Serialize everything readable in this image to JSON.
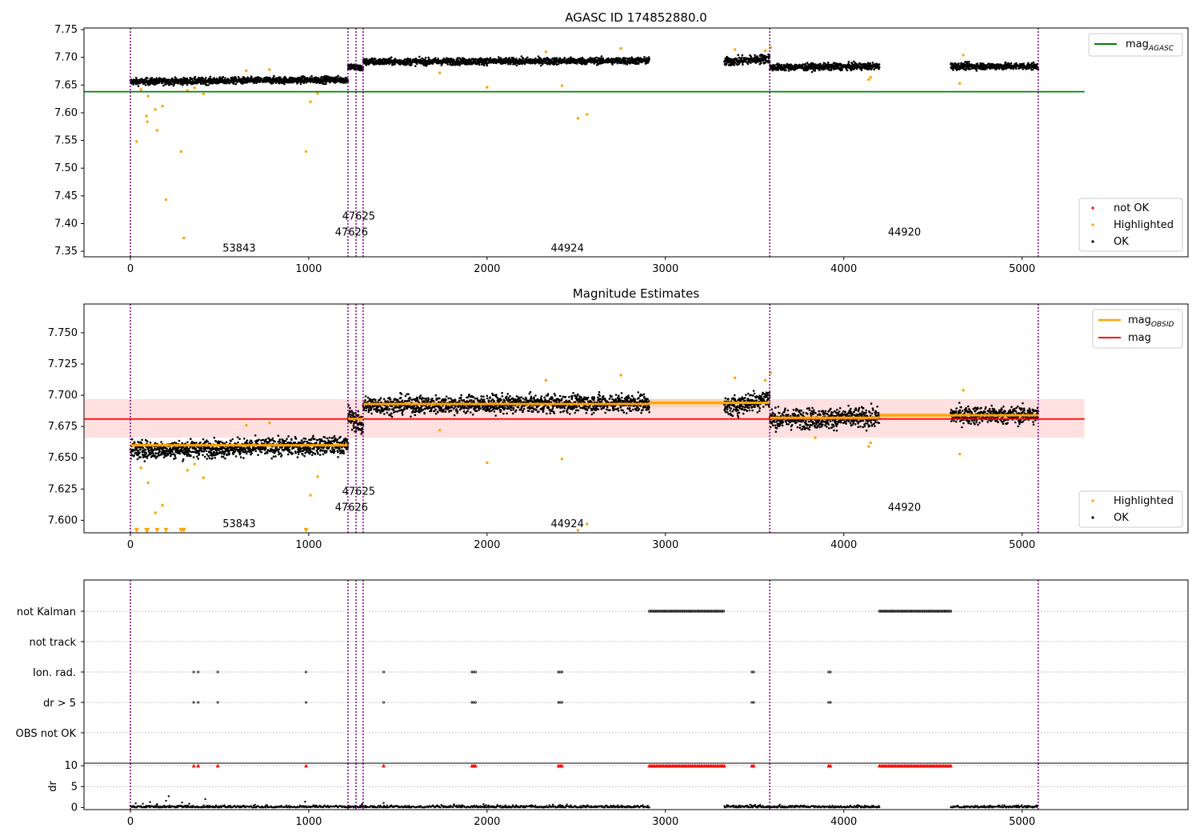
{
  "figure": {
    "colors": {
      "ok": "#000000",
      "highlighted": "#ffa500",
      "not_ok": "#ff0000",
      "mag_agasc": "#008000",
      "mag": "#ff0000",
      "mag_obsid": "#ffa500",
      "obsid_line": "#800080"
    }
  },
  "chart_data": [
    {
      "type": "scatter",
      "title": "AGASC ID 174852880.0",
      "xlabel": "",
      "ylabel": "",
      "xlim": [
        -260,
        5930
      ],
      "ylim": [
        7.34,
        7.753
      ],
      "xticks": [
        0,
        1000,
        2000,
        3000,
        4000,
        5000
      ],
      "yticks": [
        7.35,
        7.4,
        7.45,
        7.5,
        7.55,
        7.6,
        7.65,
        7.7,
        7.75
      ],
      "ytick_labels": [
        "7.35",
        "7.40",
        "7.45",
        "7.50",
        "7.55",
        "7.60",
        "7.65",
        "7.70",
        "7.75"
      ],
      "obsid_lines": [
        0,
        1220,
        1265,
        1305,
        3585,
        5090
      ],
      "obsid_labels": [
        {
          "text": "53843",
          "x": 610,
          "y": 7.355
        },
        {
          "text": "47625",
          "x": 1280,
          "y": 7.413
        },
        {
          "text": "47626",
          "x": 1240,
          "y": 7.384
        },
        {
          "text": "44924",
          "x": 2450,
          "y": 7.355
        },
        {
          "text": "44920",
          "x": 4340,
          "y": 7.384
        }
      ],
      "horizontal_lines": [
        {
          "name": "mag_AGASC",
          "y": 7.638,
          "x": [
            -260,
            5350
          ],
          "color": "#008000"
        }
      ],
      "ok_segments": [
        {
          "x": [
            0,
            1220
          ],
          "start": 7.656,
          "end": 7.66,
          "spread": 0.006
        },
        {
          "x": [
            1220,
            1305
          ],
          "start": 7.684,
          "end": 7.68,
          "spread": 0.006
        },
        {
          "x": [
            1305,
            2910
          ],
          "start": 7.692,
          "end": 7.694,
          "spread": 0.006
        },
        {
          "x": [
            3330,
            3585
          ],
          "start": 7.692,
          "end": 7.698,
          "spread": 0.008
        },
        {
          "x": [
            3585,
            4200
          ],
          "start": 7.682,
          "end": 7.684,
          "spread": 0.006
        },
        {
          "x": [
            4600,
            5090
          ],
          "start": 7.684,
          "end": 7.684,
          "spread": 0.006
        }
      ],
      "highlighted_points": [
        [
          35,
          7.548
        ],
        [
          60,
          7.642
        ],
        [
          90,
          7.594
        ],
        [
          95,
          7.584
        ],
        [
          100,
          7.63
        ],
        [
          140,
          7.606
        ],
        [
          150,
          7.568
        ],
        [
          180,
          7.612
        ],
        [
          200,
          7.443
        ],
        [
          285,
          7.53
        ],
        [
          300,
          7.374
        ],
        [
          320,
          7.64
        ],
        [
          360,
          7.645
        ],
        [
          410,
          7.634
        ],
        [
          650,
          7.676
        ],
        [
          780,
          7.678
        ],
        [
          985,
          7.53
        ],
        [
          1010,
          7.62
        ],
        [
          1050,
          7.635
        ],
        [
          1735,
          7.672
        ],
        [
          2000,
          7.646
        ],
        [
          2330,
          7.71
        ],
        [
          2420,
          7.649
        ],
        [
          2510,
          7.59
        ],
        [
          2560,
          7.597
        ],
        [
          2750,
          7.716
        ],
        [
          3390,
          7.714
        ],
        [
          3560,
          7.712
        ],
        [
          3590,
          7.718
        ],
        [
          4140,
          7.66
        ],
        [
          4150,
          7.664
        ],
        [
          4650,
          7.653
        ],
        [
          4670,
          7.704
        ]
      ],
      "legend_top": {
        "location": "upper right",
        "entries": [
          {
            "label": "mag",
            "sub": "AGASC",
            "color": "#008000"
          }
        ]
      },
      "legend_bottom": {
        "location": "lower right",
        "entries": [
          {
            "label": "not OK",
            "color": "#ff0000"
          },
          {
            "label": "Highlighted",
            "color": "#ffa500"
          },
          {
            "label": "OK",
            "color": "#000000"
          }
        ]
      }
    },
    {
      "type": "scatter",
      "title": "Magnitude Estimates",
      "xlabel": "",
      "ylabel": "",
      "xlim": [
        -260,
        5930
      ],
      "ylim": [
        7.59,
        7.773
      ],
      "xticks": [
        0,
        1000,
        2000,
        3000,
        4000,
        5000
      ],
      "yticks": [
        7.6,
        7.625,
        7.65,
        7.675,
        7.7,
        7.725,
        7.75
      ],
      "ytick_labels": [
        "7.600",
        "7.625",
        "7.650",
        "7.675",
        "7.700",
        "7.725",
        "7.750"
      ],
      "obsid_lines": [
        0,
        1220,
        1265,
        1305,
        3585,
        5090
      ],
      "obsid_labels": [
        {
          "text": "53843",
          "x": 610,
          "y": 7.597
        },
        {
          "text": "47625",
          "x": 1280,
          "y": 7.623
        },
        {
          "text": "47626",
          "x": 1240,
          "y": 7.61
        },
        {
          "text": "44924",
          "x": 2450,
          "y": 7.597
        },
        {
          "text": "44920",
          "x": 4340,
          "y": 7.61
        }
      ],
      "mag": {
        "y": 7.681,
        "band": [
          7.666,
          7.697
        ],
        "x": [
          -260,
          5350
        ]
      },
      "mag_obsid": [
        {
          "x": [
            0,
            1220
          ],
          "y": 7.66,
          "err": 0.002
        },
        {
          "x": [
            1220,
            1305
          ],
          "y": 7.681,
          "err": 0.004
        },
        {
          "x": [
            1305,
            2910
          ],
          "y": 7.693,
          "err": 0.002
        },
        {
          "x": [
            2910,
            3585
          ],
          "y": 7.694,
          "err": 0.003
        },
        {
          "x": [
            3585,
            4200
          ],
          "y": 7.682,
          "err": 0.002
        },
        {
          "x": [
            4200,
            5090
          ],
          "y": 7.684,
          "err": 0.002
        }
      ],
      "ok_segments": [
        {
          "x": [
            0,
            1220
          ],
          "start": 7.656,
          "end": 7.66,
          "spread": 0.007
        },
        {
          "x": [
            1220,
            1305
          ],
          "start": 7.684,
          "end": 7.675,
          "spread": 0.008
        },
        {
          "x": [
            1305,
            2910
          ],
          "start": 7.692,
          "end": 7.694,
          "spread": 0.007
        },
        {
          "x": [
            3330,
            3585
          ],
          "start": 7.69,
          "end": 7.698,
          "spread": 0.008
        },
        {
          "x": [
            3585,
            4200
          ],
          "start": 7.681,
          "end": 7.682,
          "spread": 0.008
        },
        {
          "x": [
            4600,
            5090
          ],
          "start": 7.684,
          "end": 7.684,
          "spread": 0.007
        }
      ],
      "highlighted_points": [
        [
          60,
          7.642
        ],
        [
          100,
          7.63
        ],
        [
          140,
          7.606
        ],
        [
          180,
          7.612
        ],
        [
          320,
          7.64
        ],
        [
          360,
          7.645
        ],
        [
          410,
          7.634
        ],
        [
          650,
          7.676
        ],
        [
          780,
          7.678
        ],
        [
          1010,
          7.62
        ],
        [
          1050,
          7.635
        ],
        [
          1735,
          7.672
        ],
        [
          2000,
          7.646
        ],
        [
          2330,
          7.712
        ],
        [
          2420,
          7.649
        ],
        [
          2510,
          7.592
        ],
        [
          2560,
          7.597
        ],
        [
          2750,
          7.716
        ],
        [
          3390,
          7.714
        ],
        [
          3560,
          7.712
        ],
        [
          3590,
          7.718
        ],
        [
          3840,
          7.666
        ],
        [
          4140,
          7.659
        ],
        [
          4150,
          7.662
        ],
        [
          4650,
          7.653
        ],
        [
          4670,
          7.704
        ]
      ],
      "offscale_low_markers": [
        35,
        90,
        95,
        150,
        200,
        285,
        300,
        985
      ],
      "legend_top": {
        "location": "upper right",
        "entries": [
          {
            "label": "mag",
            "sub": "OBSID",
            "color": "#ffa500"
          },
          {
            "label": "mag",
            "sub": "",
            "color": "#ff0000"
          }
        ]
      },
      "legend_bottom": {
        "location": "lower right",
        "entries": [
          {
            "label": "Highlighted",
            "color": "#ffa500"
          },
          {
            "label": "OK",
            "color": "#000000"
          }
        ]
      }
    },
    {
      "type": "scatter",
      "title": "",
      "xlabel": "",
      "ylabel": "",
      "xlim": [
        -260,
        5930
      ],
      "categories": [
        "not Kalman",
        "not track",
        "Ion. rad.",
        "dr > 5",
        "OBS not OK"
      ],
      "obsid_lines": [
        0,
        1220,
        1265,
        1305,
        3585,
        5090
      ],
      "flag_runs": [
        {
          "category": "not Kalman",
          "x": [
            2910,
            3330
          ]
        },
        {
          "category": "not Kalman",
          "x": [
            4200,
            4600
          ]
        }
      ],
      "flag_points": [
        {
          "category": "Ion. rad.",
          "x": [
            355,
            380,
            490,
            985,
            1420,
            1915,
            1925,
            1935,
            2400,
            2410,
            2420,
            3485,
            3495,
            3915,
            3925
          ]
        },
        {
          "category": "dr > 5",
          "x": [
            355,
            380,
            490,
            985,
            1420,
            1915,
            1925,
            1935,
            2400,
            2410,
            2420,
            3485,
            3495,
            3915,
            3925
          ]
        }
      ]
    },
    {
      "type": "scatter",
      "title": "",
      "xlabel": "",
      "ylabel": "dr",
      "xlim": [
        -260,
        5930
      ],
      "ylim": [
        -0.5,
        10.6
      ],
      "xticks": [
        0,
        1000,
        2000,
        3000,
        4000,
        5000
      ],
      "yticks": [
        0,
        5,
        10
      ],
      "ytick_labels": [
        "0",
        "5",
        "10"
      ],
      "obsid_lines": [
        0,
        1220,
        1265,
        1305,
        3585,
        5090
      ],
      "cap_markers_at": 10,
      "cap_runs": [
        [
          2910,
          3330
        ],
        [
          4200,
          4600
        ]
      ],
      "cap_points": [
        355,
        380,
        490,
        985,
        1420,
        1915,
        1925,
        1935,
        2400,
        2410,
        2420,
        3485,
        3495,
        3915,
        3925
      ],
      "dr_segments": [
        [
          0,
          1305
        ],
        [
          1305,
          2910
        ],
        [
          3330,
          3585
        ],
        [
          3585,
          4200
        ],
        [
          4600,
          5090
        ]
      ],
      "dr_outliers": [
        [
          30,
          1.0
        ],
        [
          70,
          0.9
        ],
        [
          110,
          1.3
        ],
        [
          150,
          0.8
        ],
        [
          200,
          1.6
        ],
        [
          215,
          2.7
        ],
        [
          290,
          1.2
        ],
        [
          330,
          0.9
        ],
        [
          420,
          2.0
        ],
        [
          980,
          1.4
        ],
        [
          1300,
          0.9
        ],
        [
          1420,
          1.1
        ],
        [
          1980,
          0.8
        ]
      ]
    }
  ]
}
